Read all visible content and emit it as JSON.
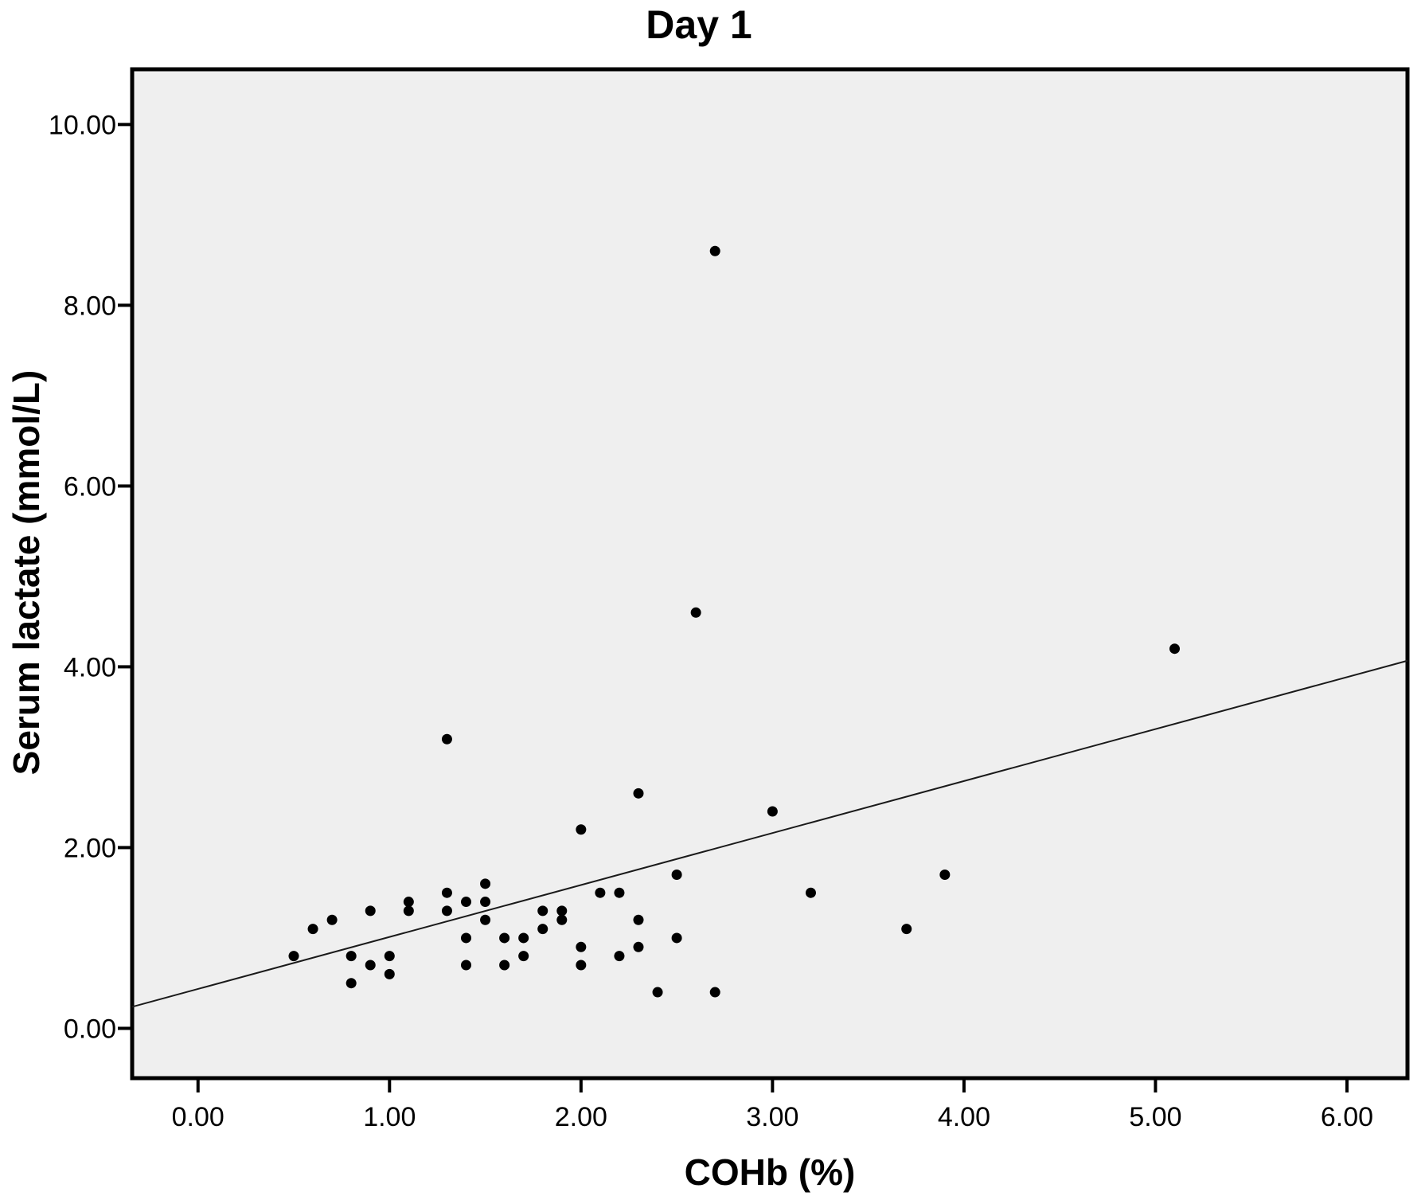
{
  "chart_data": {
    "type": "scatter",
    "title": "Day 1",
    "xlabel": "COHb (%)",
    "ylabel": "Serum lactate (mmol/L)",
    "xlim": [
      -0.344,
      6.316
    ],
    "ylim": [
      -0.551,
      10.611
    ],
    "grid": false,
    "legend": null,
    "plot_bg": "#efefef",
    "marker_color": "#000000",
    "frame_color": "#000000",
    "line_color": "#1a1a1a",
    "x_ticks": {
      "values": [
        0,
        1,
        2,
        3,
        4,
        5,
        6
      ],
      "labels": [
        "0.00",
        "1.00",
        "2.00",
        "3.00",
        "4.00",
        "5.00",
        "6.00"
      ]
    },
    "y_ticks": {
      "values": [
        0,
        2,
        4,
        6,
        8,
        10
      ],
      "labels": [
        "0.00",
        "2.00",
        "4.00",
        "6.00",
        "8.00",
        "10.00"
      ]
    },
    "points": [
      [
        0.5,
        0.8
      ],
      [
        0.6,
        1.1
      ],
      [
        0.7,
        1.2
      ],
      [
        0.8,
        0.5
      ],
      [
        0.8,
        0.8
      ],
      [
        0.9,
        0.7
      ],
      [
        0.9,
        1.3
      ],
      [
        1.0,
        0.6
      ],
      [
        1.0,
        0.8
      ],
      [
        1.1,
        1.3
      ],
      [
        1.1,
        1.4
      ],
      [
        1.3,
        1.3
      ],
      [
        1.3,
        1.5
      ],
      [
        1.3,
        3.2
      ],
      [
        1.4,
        0.7
      ],
      [
        1.4,
        1.0
      ],
      [
        1.4,
        1.4
      ],
      [
        1.5,
        1.2
      ],
      [
        1.5,
        1.4
      ],
      [
        1.5,
        1.6
      ],
      [
        1.6,
        0.7
      ],
      [
        1.6,
        1.0
      ],
      [
        1.7,
        0.8
      ],
      [
        1.7,
        1.0
      ],
      [
        1.8,
        1.1
      ],
      [
        1.8,
        1.3
      ],
      [
        1.9,
        1.2
      ],
      [
        1.9,
        1.3
      ],
      [
        2.0,
        0.7
      ],
      [
        2.0,
        0.9
      ],
      [
        2.0,
        2.2
      ],
      [
        2.1,
        1.5
      ],
      [
        2.2,
        0.8
      ],
      [
        2.2,
        1.5
      ],
      [
        2.3,
        0.9
      ],
      [
        2.3,
        1.2
      ],
      [
        2.3,
        2.6
      ],
      [
        2.4,
        0.4
      ],
      [
        2.5,
        1.0
      ],
      [
        2.5,
        1.7
      ],
      [
        2.6,
        4.6
      ],
      [
        2.7,
        0.4
      ],
      [
        2.7,
        8.6
      ],
      [
        3.0,
        2.4
      ],
      [
        3.2,
        1.5
      ],
      [
        3.7,
        1.1
      ],
      [
        3.9,
        1.7
      ],
      [
        5.1,
        4.2
      ]
    ],
    "fit_line": {
      "slope": 0.575,
      "intercept": 0.436
    }
  }
}
